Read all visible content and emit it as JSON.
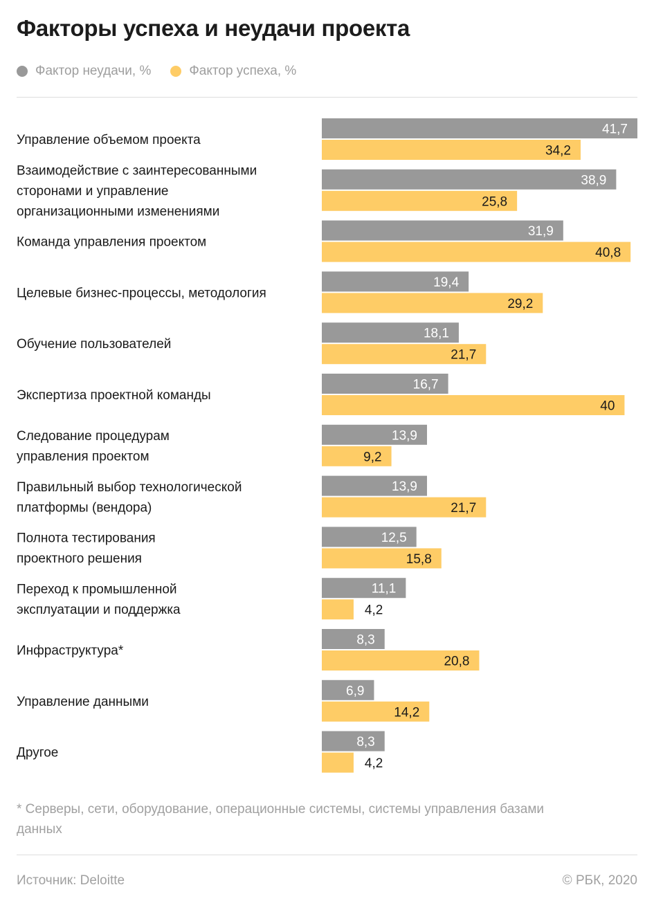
{
  "title": "Факторы успеха и неудачи проекта",
  "legend": [
    {
      "label": "Фактор неудачи, %",
      "color": "#999999"
    },
    {
      "label": "Фактор успеха, %",
      "color": "#FECC66"
    }
  ],
  "chart_data": {
    "type": "bar",
    "orientation": "horizontal",
    "title": "Факторы успеха и неудачи проекта",
    "categories": [
      [
        "Управление объемом проекта"
      ],
      [
        "Взаимодействие с заинтересованными",
        "сторонами и управление",
        "организационными изменениями"
      ],
      [
        "Команда управления проектом"
      ],
      [
        "Целевые бизнес-процессы, методология"
      ],
      [
        "Обучение пользователей"
      ],
      [
        "Экспертиза проектной команды"
      ],
      [
        "Следование процедурам",
        "управления проектом"
      ],
      [
        "Правильный выбор технологической",
        "платформы (вендора)"
      ],
      [
        "Полнота тестирования",
        "проектного решения"
      ],
      [
        "Переход к промышленной",
        "эксплуатации и поддержка"
      ],
      [
        "Инфраструктура*"
      ],
      [
        "Управление данными"
      ],
      [
        "Другое"
      ]
    ],
    "series": [
      {
        "name": "Фактор неудачи, %",
        "color": "#999999",
        "values": [
          41.7,
          38.9,
          31.9,
          19.4,
          18.1,
          16.7,
          13.9,
          13.9,
          12.5,
          11.1,
          8.3,
          6.9,
          8.3
        ],
        "labels": [
          "41,7",
          "38,9",
          "31,9",
          "19,4",
          "18,1",
          "16,7",
          "13,9",
          "13,9",
          "12,5",
          "11,1",
          "8,3",
          "6,9",
          "8,3"
        ]
      },
      {
        "name": "Фактор успеха, %",
        "color": "#FECC66",
        "values": [
          34.2,
          25.8,
          40.8,
          29.2,
          21.7,
          40,
          9.2,
          21.7,
          15.8,
          4.2,
          20.8,
          14.2,
          4.2
        ],
        "labels": [
          "34,2",
          "25,8",
          "40,8",
          "29,2",
          "21,7",
          "40",
          "9,2",
          "21,7",
          "15,8",
          "4,2",
          "20,8",
          "14,2",
          "4,2"
        ]
      }
    ],
    "xlim": [
      0,
      41.7
    ],
    "grid": false,
    "legend_position": "top-left"
  },
  "footnote": "* Серверы, сети, оборудование, операционные системы, системы управления базами данных",
  "source": "Источник:  Deloitte",
  "copyright": "©  РБК, 2020"
}
